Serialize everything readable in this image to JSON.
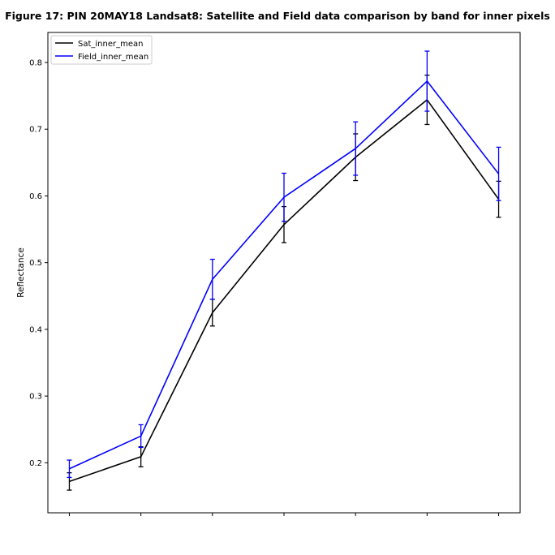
{
  "chart_data": {
    "type": "line",
    "title": "Figure 17: PIN 20MAY18  Landsat8: Satellite and Field data comparison by band for inner pixels",
    "xlabel": "",
    "ylabel": "Reflectance",
    "ylim": [
      0.125,
      0.845
    ],
    "x": [
      1,
      2,
      3,
      4,
      5,
      6,
      7
    ],
    "xlim": [
      0.7,
      7.3
    ],
    "yticks": [
      0.2,
      0.3,
      0.4,
      0.5,
      0.6,
      0.7,
      0.8
    ],
    "ytick_labels": [
      "0.2",
      "0.3",
      "0.4",
      "0.5",
      "0.6",
      "0.7",
      "0.8"
    ],
    "grid": false,
    "legend_position": "top-left",
    "series": [
      {
        "name": "Sat_inner_mean",
        "color": "#000000",
        "values": [
          0.172,
          0.209,
          0.425,
          0.557,
          0.658,
          0.744,
          0.595
        ],
        "errors": [
          0.013,
          0.015,
          0.02,
          0.027,
          0.035,
          0.037,
          0.027
        ]
      },
      {
        "name": "Field_inner_mean",
        "color": "#0000ff",
        "values": [
          0.191,
          0.24,
          0.475,
          0.598,
          0.671,
          0.772,
          0.633
        ],
        "errors": [
          0.013,
          0.017,
          0.03,
          0.036,
          0.04,
          0.045,
          0.04
        ]
      }
    ]
  }
}
